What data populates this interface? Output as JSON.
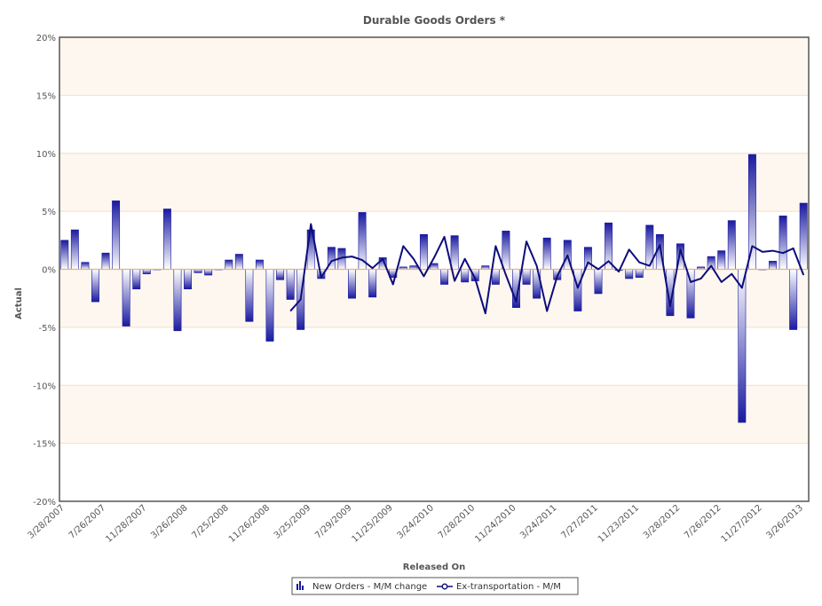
{
  "colors": {
    "bar_dark": "#1a1aa0",
    "bar_light": "#ffffff",
    "line": "#0d0d7a",
    "band": "#fdf7ef",
    "grid": "#f2dfc8",
    "zero": "#e9b37a",
    "frame": "#555555"
  },
  "chart_data": {
    "type": "bar",
    "title": "Durable Goods Orders *",
    "xlabel": "Released On",
    "ylabel": "Actual",
    "ylim": [
      -20,
      20
    ],
    "y_ticks": [
      "20%",
      "15%",
      "10%",
      "5%",
      "0%",
      "-5%",
      "-10%",
      "-15%",
      "-20%"
    ],
    "x_tick_labels": [
      "3/28/2007",
      "7/26/2007",
      "11/28/2007",
      "3/26/2008",
      "7/25/2008",
      "11/26/2008",
      "3/25/2009",
      "7/29/2009",
      "11/25/2009",
      "3/24/2010",
      "7/28/2010",
      "11/24/2010",
      "3/24/2011",
      "7/27/2011",
      "11/23/2011",
      "3/28/2012",
      "7/26/2012",
      "11/27/2012",
      "3/26/2013"
    ],
    "legend_position": "bottom",
    "series": [
      {
        "name": "New Orders - M/M change",
        "kind": "bar",
        "values": [
          2.5,
          3.4,
          0.6,
          -2.8,
          1.4,
          5.9,
          -4.9,
          -1.7,
          -0.4,
          0.0,
          5.2,
          -5.3,
          -1.7,
          -0.3,
          -0.5,
          0.0,
          0.8,
          1.3,
          -4.5,
          0.8,
          -6.2,
          -0.9,
          -2.6,
          -5.2,
          3.4,
          -0.8,
          1.9,
          1.8,
          -2.5,
          4.9,
          -2.4,
          1.0,
          -0.7,
          0.2,
          0.3,
          3.0,
          0.5,
          -1.3,
          2.9,
          -1.1,
          -1.0,
          0.3,
          -1.3,
          3.3,
          -3.3,
          -1.3,
          -2.5,
          2.7,
          -0.9,
          2.5,
          -3.6,
          1.9,
          -2.1,
          4.0,
          -0.1,
          -0.8,
          -0.7,
          3.8,
          3.0,
          -4.0,
          2.2,
          -4.2,
          0.2,
          1.1,
          1.6,
          4.2,
          -13.2,
          9.9,
          0.0,
          0.7,
          4.6,
          -5.2,
          5.7
        ]
      },
      {
        "name": "Ex-transportation - M/M",
        "kind": "line",
        "values": [
          null,
          null,
          null,
          null,
          null,
          null,
          null,
          null,
          null,
          null,
          null,
          null,
          null,
          null,
          null,
          null,
          null,
          null,
          null,
          null,
          null,
          null,
          -3.6,
          -2.6,
          3.9,
          -0.7,
          0.7,
          1.0,
          1.1,
          0.8,
          0.1,
          0.9,
          -1.3,
          2.0,
          0.9,
          -0.6,
          1.0,
          2.8,
          -1.0,
          0.9,
          -0.8,
          -3.8,
          2.0,
          -0.5,
          -2.8,
          2.4,
          0.3,
          -3.6,
          -0.6,
          1.2,
          -1.6,
          0.6,
          0.0,
          0.7,
          -0.2,
          1.7,
          0.6,
          0.3,
          2.1,
          -3.2,
          1.7,
          -1.1,
          -0.8,
          0.3,
          -1.1,
          -0.4,
          -1.6,
          2.0,
          1.5,
          1.6,
          1.4,
          1.8,
          -0.5
        ]
      }
    ]
  }
}
